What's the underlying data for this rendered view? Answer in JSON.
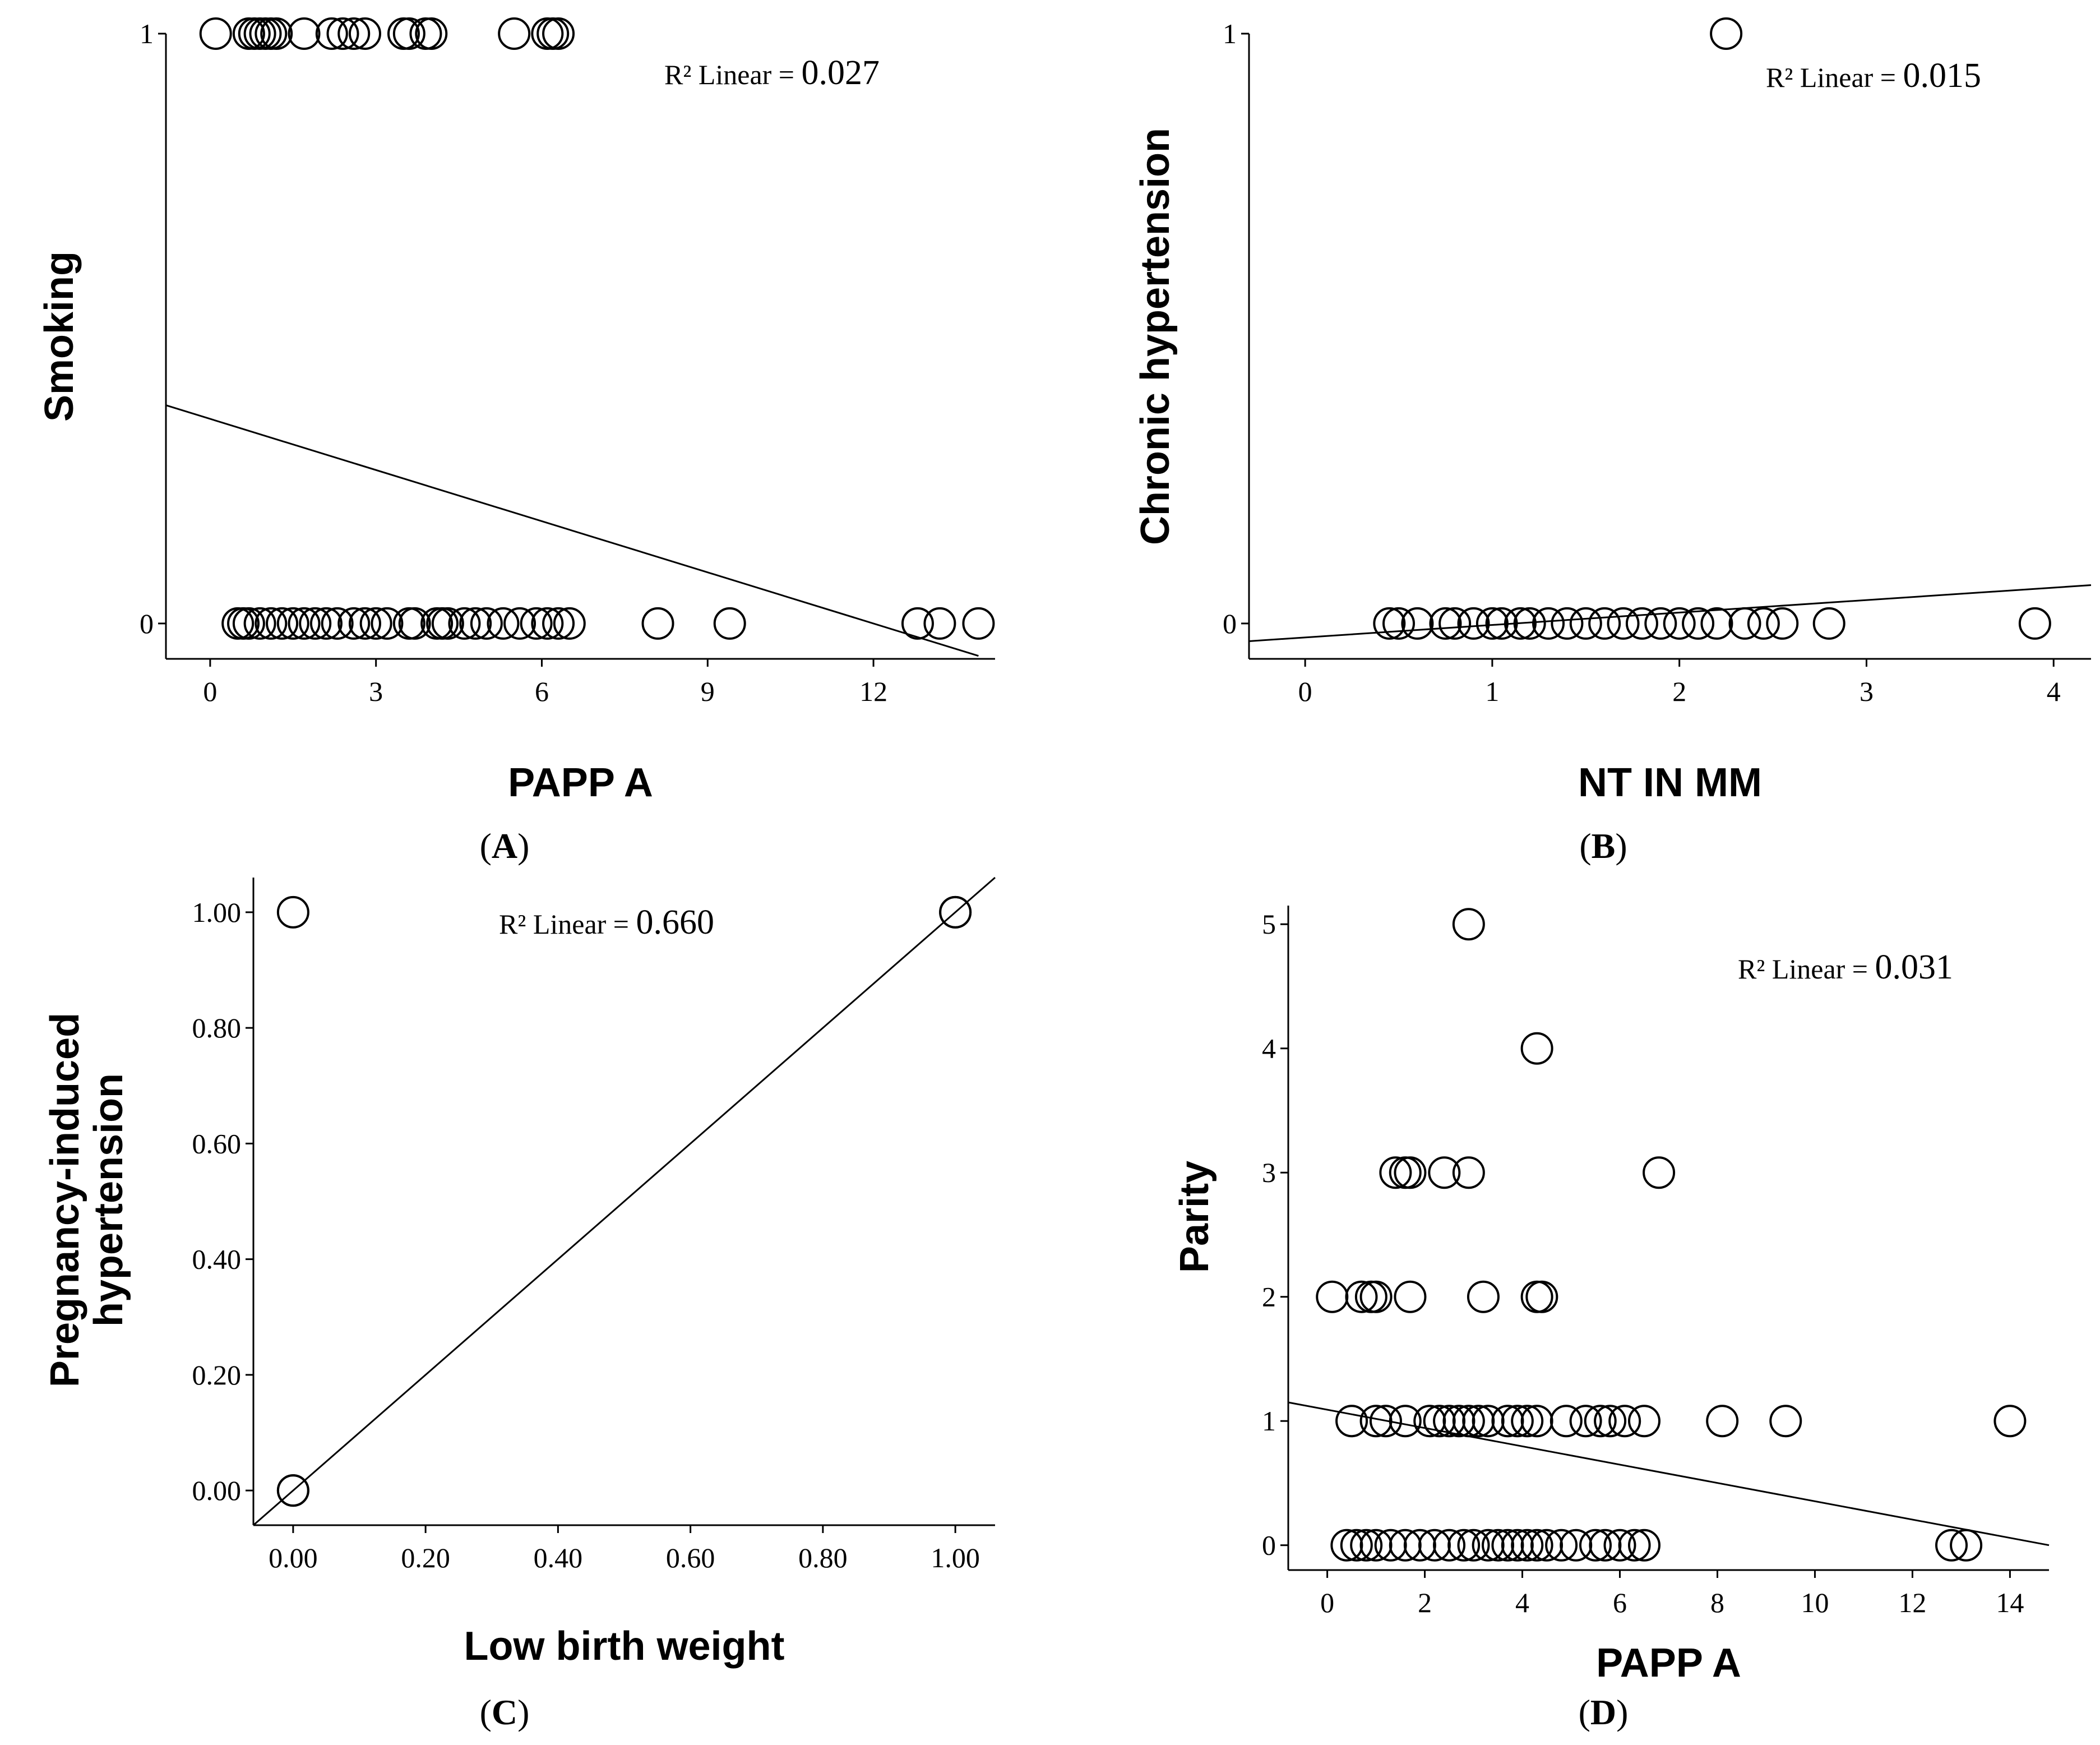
{
  "chart_data": [
    {
      "type": "scatter",
      "panel_label": "A",
      "xlabel": "PAPP A",
      "ylabel": "Smoking",
      "xlim": [
        -0.8,
        14.2
      ],
      "ylim": [
        -0.06,
        1.0
      ],
      "xticks": [
        "0",
        "3",
        "6",
        "9",
        "12"
      ],
      "xtick_values": [
        0,
        3,
        6,
        9,
        12
      ],
      "yticks": [
        "0",
        "1"
      ],
      "ytick_values": [
        0,
        1
      ],
      "r2_prefix": "R² Linear =",
      "r2_value": "0.027",
      "fit_line": {
        "x": [
          -0.8,
          13.9
        ],
        "y": [
          0.37,
          -0.055
        ]
      },
      "points": [
        {
          "x": 0.1,
          "y": 1
        },
        {
          "x": 0.7,
          "y": 1
        },
        {
          "x": 0.8,
          "y": 1
        },
        {
          "x": 0.9,
          "y": 1
        },
        {
          "x": 1.0,
          "y": 1
        },
        {
          "x": 1.1,
          "y": 1
        },
        {
          "x": 1.2,
          "y": 1
        },
        {
          "x": 1.7,
          "y": 1
        },
        {
          "x": 2.2,
          "y": 1
        },
        {
          "x": 2.4,
          "y": 1
        },
        {
          "x": 2.6,
          "y": 1
        },
        {
          "x": 2.8,
          "y": 1
        },
        {
          "x": 3.5,
          "y": 1
        },
        {
          "x": 3.6,
          "y": 1
        },
        {
          "x": 3.9,
          "y": 1
        },
        {
          "x": 4.0,
          "y": 1
        },
        {
          "x": 5.5,
          "y": 1
        },
        {
          "x": 6.1,
          "y": 1
        },
        {
          "x": 6.2,
          "y": 1
        },
        {
          "x": 6.3,
          "y": 1
        },
        {
          "x": 0.5,
          "y": 0
        },
        {
          "x": 0.6,
          "y": 0
        },
        {
          "x": 0.7,
          "y": 0
        },
        {
          "x": 0.9,
          "y": 0
        },
        {
          "x": 1.1,
          "y": 0
        },
        {
          "x": 1.3,
          "y": 0
        },
        {
          "x": 1.5,
          "y": 0
        },
        {
          "x": 1.7,
          "y": 0
        },
        {
          "x": 1.9,
          "y": 0
        },
        {
          "x": 2.1,
          "y": 0
        },
        {
          "x": 2.3,
          "y": 0
        },
        {
          "x": 2.6,
          "y": 0
        },
        {
          "x": 2.8,
          "y": 0
        },
        {
          "x": 3.0,
          "y": 0
        },
        {
          "x": 3.2,
          "y": 0
        },
        {
          "x": 3.6,
          "y": 0
        },
        {
          "x": 3.7,
          "y": 0
        },
        {
          "x": 4.1,
          "y": 0
        },
        {
          "x": 4.2,
          "y": 0
        },
        {
          "x": 4.3,
          "y": 0
        },
        {
          "x": 4.6,
          "y": 0
        },
        {
          "x": 4.8,
          "y": 0
        },
        {
          "x": 5.0,
          "y": 0
        },
        {
          "x": 5.3,
          "y": 0
        },
        {
          "x": 5.6,
          "y": 0
        },
        {
          "x": 5.9,
          "y": 0
        },
        {
          "x": 6.1,
          "y": 0
        },
        {
          "x": 6.3,
          "y": 0
        },
        {
          "x": 6.5,
          "y": 0
        },
        {
          "x": 8.1,
          "y": 0
        },
        {
          "x": 9.4,
          "y": 0
        },
        {
          "x": 12.8,
          "y": 0
        },
        {
          "x": 13.2,
          "y": 0
        },
        {
          "x": 13.9,
          "y": 0
        }
      ]
    },
    {
      "type": "scatter",
      "panel_label": "B",
      "xlabel": "NT IN MM",
      "ylabel": "Chronic hypertension",
      "xlim": [
        -0.3,
        4.2
      ],
      "ylim": [
        -0.06,
        1.0
      ],
      "xticks": [
        "0",
        "1",
        "2",
        "3",
        "4"
      ],
      "xtick_values": [
        0,
        1,
        2,
        3,
        4
      ],
      "yticks": [
        "0",
        "1"
      ],
      "ytick_values": [
        0,
        1
      ],
      "r2_prefix": "R² Linear =",
      "r2_value": "0.015",
      "fit_line": {
        "x": [
          -0.3,
          4.2
        ],
        "y": [
          -0.03,
          0.065
        ]
      },
      "points": [
        {
          "x": 2.25,
          "y": 1
        },
        {
          "x": 0.45,
          "y": 0
        },
        {
          "x": 0.5,
          "y": 0
        },
        {
          "x": 0.6,
          "y": 0
        },
        {
          "x": 0.75,
          "y": 0
        },
        {
          "x": 0.8,
          "y": 0
        },
        {
          "x": 0.9,
          "y": 0
        },
        {
          "x": 1.0,
          "y": 0
        },
        {
          "x": 1.05,
          "y": 0
        },
        {
          "x": 1.15,
          "y": 0
        },
        {
          "x": 1.2,
          "y": 0
        },
        {
          "x": 1.3,
          "y": 0
        },
        {
          "x": 1.4,
          "y": 0
        },
        {
          "x": 1.5,
          "y": 0
        },
        {
          "x": 1.6,
          "y": 0
        },
        {
          "x": 1.7,
          "y": 0
        },
        {
          "x": 1.8,
          "y": 0
        },
        {
          "x": 1.9,
          "y": 0
        },
        {
          "x": 2.0,
          "y": 0
        },
        {
          "x": 2.1,
          "y": 0
        },
        {
          "x": 2.2,
          "y": 0
        },
        {
          "x": 2.35,
          "y": 0
        },
        {
          "x": 2.45,
          "y": 0
        },
        {
          "x": 2.55,
          "y": 0
        },
        {
          "x": 2.8,
          "y": 0
        },
        {
          "x": 3.9,
          "y": 0
        }
      ]
    },
    {
      "type": "scatter",
      "panel_label": "C",
      "xlabel": "Low birth weight",
      "ylabel_lines": [
        "Pregnancy-induced",
        "hypertension"
      ],
      "xlim": [
        -0.06,
        1.06
      ],
      "ylim": [
        -0.06,
        1.06
      ],
      "xticks": [
        "0.00",
        "0.20",
        "0.40",
        "0.60",
        "0.80",
        "1.00"
      ],
      "xtick_values": [
        0,
        0.2,
        0.4,
        0.6,
        0.8,
        1.0
      ],
      "yticks": [
        "0.00",
        "0.20",
        "0.40",
        "0.60",
        "0.80",
        "1.00"
      ],
      "ytick_values": [
        0,
        0.2,
        0.4,
        0.6,
        0.8,
        1.0
      ],
      "r2_prefix": "R² Linear =",
      "r2_value": "0.660",
      "fit_line": {
        "x": [
          -0.06,
          1.06
        ],
        "y": [
          -0.06,
          1.06
        ]
      },
      "points": [
        {
          "x": 0.0,
          "y": 1.0
        },
        {
          "x": 0.0,
          "y": 0.0
        },
        {
          "x": 0.0,
          "y": 0.0
        },
        {
          "x": 1.0,
          "y": 1.0
        },
        {
          "x": 1.0,
          "y": 1.0
        }
      ]
    },
    {
      "type": "scatter",
      "panel_label": "D",
      "xlabel": "PAPP A",
      "ylabel": "Parity",
      "xlim": [
        -0.8,
        14.8
      ],
      "ylim": [
        -0.2,
        5.15
      ],
      "xticks": [
        "0",
        "2",
        "4",
        "6",
        "8",
        "10",
        "12",
        "14"
      ],
      "xtick_values": [
        0,
        2,
        4,
        6,
        8,
        10,
        12,
        14
      ],
      "yticks": [
        "0",
        "1",
        "2",
        "3",
        "4",
        "5"
      ],
      "ytick_values": [
        0,
        1,
        2,
        3,
        4,
        5
      ],
      "r2_prefix": "R² Linear =",
      "r2_value": "0.031",
      "fit_line": {
        "x": [
          -0.8,
          14.8
        ],
        "y": [
          1.15,
          0.0
        ]
      },
      "points": [
        {
          "x": 2.9,
          "y": 5
        },
        {
          "x": 4.3,
          "y": 4
        },
        {
          "x": 1.4,
          "y": 3
        },
        {
          "x": 1.6,
          "y": 3
        },
        {
          "x": 1.7,
          "y": 3
        },
        {
          "x": 2.4,
          "y": 3
        },
        {
          "x": 2.9,
          "y": 3
        },
        {
          "x": 6.8,
          "y": 3
        },
        {
          "x": 0.1,
          "y": 2
        },
        {
          "x": 0.7,
          "y": 2
        },
        {
          "x": 0.9,
          "y": 2
        },
        {
          "x": 1.0,
          "y": 2
        },
        {
          "x": 1.7,
          "y": 2
        },
        {
          "x": 3.2,
          "y": 2
        },
        {
          "x": 4.3,
          "y": 2
        },
        {
          "x": 4.4,
          "y": 2
        },
        {
          "x": 0.5,
          "y": 1
        },
        {
          "x": 1.0,
          "y": 1
        },
        {
          "x": 1.2,
          "y": 1
        },
        {
          "x": 1.6,
          "y": 1
        },
        {
          "x": 2.1,
          "y": 1
        },
        {
          "x": 2.3,
          "y": 1
        },
        {
          "x": 2.5,
          "y": 1
        },
        {
          "x": 2.7,
          "y": 1
        },
        {
          "x": 2.9,
          "y": 1
        },
        {
          "x": 3.1,
          "y": 1
        },
        {
          "x": 3.3,
          "y": 1
        },
        {
          "x": 3.7,
          "y": 1
        },
        {
          "x": 3.9,
          "y": 1
        },
        {
          "x": 4.1,
          "y": 1
        },
        {
          "x": 4.3,
          "y": 1
        },
        {
          "x": 4.9,
          "y": 1
        },
        {
          "x": 5.3,
          "y": 1
        },
        {
          "x": 5.6,
          "y": 1
        },
        {
          "x": 5.8,
          "y": 1
        },
        {
          "x": 6.1,
          "y": 1
        },
        {
          "x": 6.5,
          "y": 1
        },
        {
          "x": 8.1,
          "y": 1
        },
        {
          "x": 9.4,
          "y": 1
        },
        {
          "x": 14.0,
          "y": 1
        },
        {
          "x": 0.4,
          "y": 0
        },
        {
          "x": 0.6,
          "y": 0
        },
        {
          "x": 0.8,
          "y": 0
        },
        {
          "x": 1.0,
          "y": 0
        },
        {
          "x": 1.3,
          "y": 0
        },
        {
          "x": 1.6,
          "y": 0
        },
        {
          "x": 1.9,
          "y": 0
        },
        {
          "x": 2.2,
          "y": 0
        },
        {
          "x": 2.5,
          "y": 0
        },
        {
          "x": 2.8,
          "y": 0
        },
        {
          "x": 3.0,
          "y": 0
        },
        {
          "x": 3.3,
          "y": 0
        },
        {
          "x": 3.5,
          "y": 0
        },
        {
          "x": 3.7,
          "y": 0
        },
        {
          "x": 3.9,
          "y": 0
        },
        {
          "x": 4.1,
          "y": 0
        },
        {
          "x": 4.3,
          "y": 0
        },
        {
          "x": 4.5,
          "y": 0
        },
        {
          "x": 4.8,
          "y": 0
        },
        {
          "x": 5.1,
          "y": 0
        },
        {
          "x": 5.5,
          "y": 0
        },
        {
          "x": 5.7,
          "y": 0
        },
        {
          "x": 6.0,
          "y": 0
        },
        {
          "x": 6.3,
          "y": 0
        },
        {
          "x": 6.5,
          "y": 0
        },
        {
          "x": 12.8,
          "y": 0
        },
        {
          "x": 13.1,
          "y": 0
        }
      ]
    }
  ]
}
